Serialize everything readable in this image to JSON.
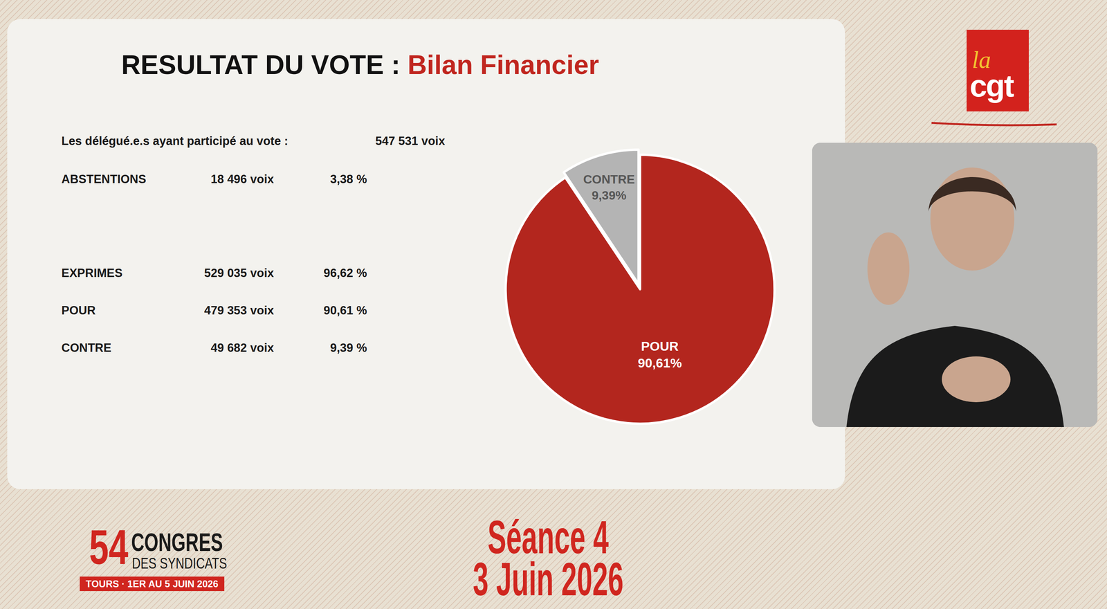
{
  "header": {
    "title": "RESULTAT DU VOTE :",
    "subject": "Bilan Financier"
  },
  "table": {
    "rows": [
      [
        "Les délégué.e.s ayant participé au vote :",
        "547 531 voix"
      ],
      [
        "ABSTENTIONS",
        "18 496 voix",
        "3,38 %"
      ],
      [
        "EXPRIMES",
        "529 035 voix",
        "96,62 %"
      ],
      [
        "POUR",
        "479 353 voix",
        "90,61 %"
      ],
      [
        "CONTRE",
        "49 682 voix",
        "9,39 %"
      ]
    ]
  },
  "chart_data": {
    "type": "pie",
    "categories": [
      "POUR",
      "CONTRE"
    ],
    "values": [
      90.61,
      9.39
    ],
    "value_labels": [
      "90,61%",
      "9,39%"
    ],
    "colors": [
      "#b3261e",
      "#b4b4b4"
    ],
    "data_labels": true
  },
  "logo": {
    "line1": "la",
    "line2": "cgt"
  },
  "footer": {
    "session": "Séance 4",
    "date": "3 Juin 2026",
    "congress_number": "54",
    "congress_line1": "CONGRES",
    "congress_line2": "DES SYNDICATS",
    "place_dates": "TOURS · 1ER AU 5 JUIN 2026"
  }
}
